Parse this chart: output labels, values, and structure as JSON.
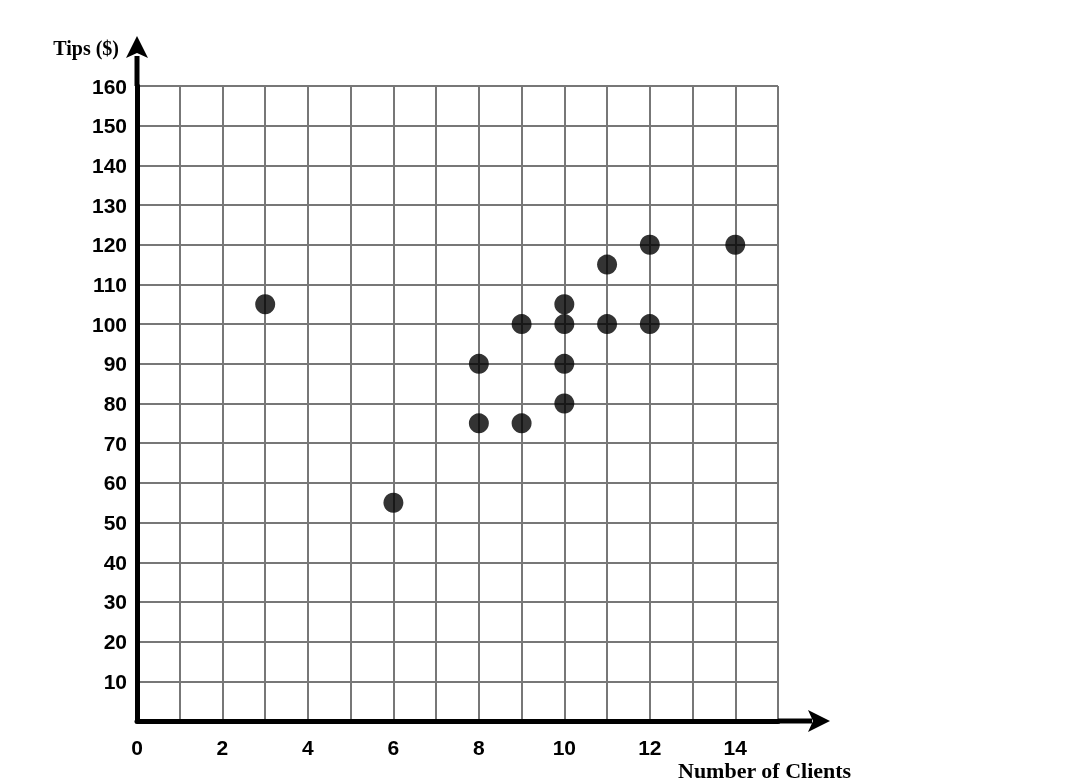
{
  "chart_data": {
    "type": "scatter",
    "xlabel": "Number of Clients",
    "ylabel": "Tips ($)",
    "x": [
      3,
      6,
      8,
      8,
      9,
      9,
      10,
      10,
      10,
      10,
      11,
      11,
      12,
      12,
      14
    ],
    "values": [
      105,
      55,
      90,
      75,
      100,
      75,
      105,
      100,
      90,
      80,
      115,
      100,
      120,
      100,
      120
    ],
    "color": "#000000",
    "marker": "circle",
    "grid": true,
    "xlim": [
      0,
      15
    ],
    "xticks": [
      0,
      {
        "value": 1,
        "label": null
      },
      2,
      {
        "value": 3,
        "label": null
      },
      4,
      {
        "value": 5,
        "label": null
      },
      6,
      {
        "value": 7,
        "label": null
      },
      8,
      {
        "value": 9,
        "label": null
      },
      10,
      {
        "value": 11,
        "label": null
      },
      12,
      {
        "value": 13,
        "label": null
      },
      14,
      {
        "value": 15,
        "label": null
      }
    ],
    "ylim": [
      0,
      160
    ],
    "yticks": [
      {
        "value": 0,
        "label": null
      },
      10,
      20,
      30,
      40,
      50,
      60,
      70,
      80,
      90,
      100,
      110,
      120,
      130,
      140,
      150,
      160
    ]
  }
}
